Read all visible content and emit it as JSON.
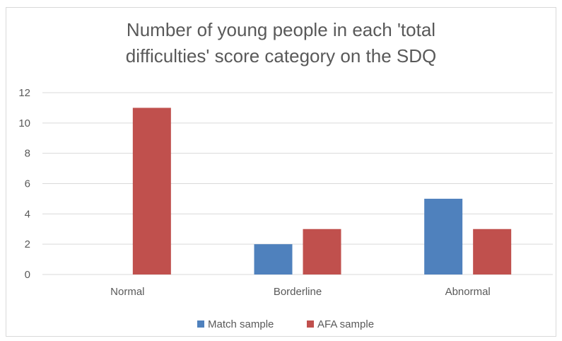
{
  "chart_data": {
    "type": "bar",
    "title_lines": [
      "Number of young people in each 'total",
      "difficulties' score category on the SDQ"
    ],
    "categories": [
      "Normal",
      "Borderline",
      "Abnormal"
    ],
    "series": [
      {
        "name": "Match sample",
        "values": [
          0,
          2,
          5
        ],
        "color": "#4f81bd"
      },
      {
        "name": "AFA sample",
        "values": [
          11,
          3,
          3
        ],
        "color": "#c0504d"
      }
    ],
    "ylim": [
      0,
      12
    ],
    "yticks": [
      0,
      2,
      4,
      6,
      8,
      10,
      12
    ],
    "grid": true,
    "legend_position": "bottom"
  }
}
